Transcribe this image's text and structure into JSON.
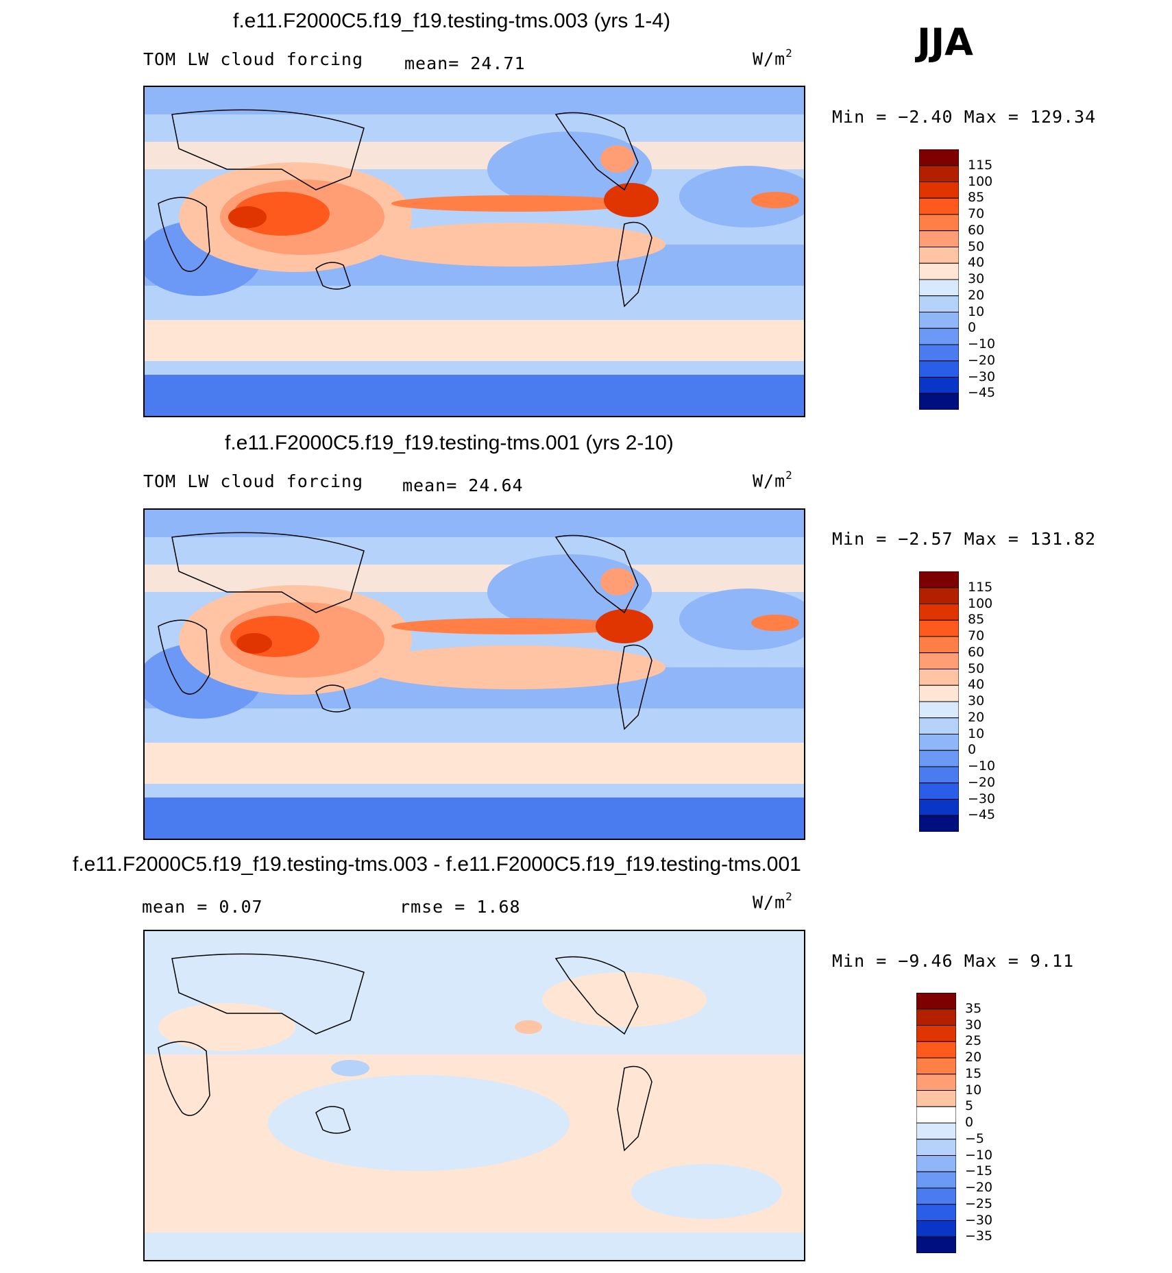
{
  "season_label": "JJA",
  "units_base": "W/m",
  "units_exp": "2",
  "panels": [
    {
      "title": "f.e11.F2000C5.f19_f19.testing-tms.003 (yrs 1-4)",
      "variable": "TOM LW cloud forcing",
      "stat1": "mean=   24.71",
      "stat2": "",
      "minmax": "Min =   −2.40 Max = 129.34",
      "colorbar_labels": [
        "115",
        "100",
        "85",
        "70",
        "60",
        "50",
        "40",
        "30",
        "20",
        "10",
        "0",
        "−10",
        "−20",
        "−30",
        "−45"
      ]
    },
    {
      "title": "f.e11.F2000C5.f19_f19.testing-tms.001 (yrs 2-10)",
      "variable": "TOM LW cloud forcing",
      "stat1": "mean=   24.64",
      "stat2": "",
      "minmax": "Min =   −2.57 Max = 131.82",
      "colorbar_labels": [
        "115",
        "100",
        "85",
        "70",
        "60",
        "50",
        "40",
        "30",
        "20",
        "10",
        "0",
        "−10",
        "−20",
        "−30",
        "−45"
      ]
    },
    {
      "title": "f.e11.F2000C5.f19_f19.testing-tms.003 - f.e11.F2000C5.f19_f19.testing-tms.001",
      "variable": "",
      "stat1": "mean =    0.07",
      "stat2": "rmse =    1.68",
      "minmax": "Min =   −9.46 Max =    9.11",
      "colorbar_labels": [
        "35",
        "30",
        "25",
        "20",
        "15",
        "10",
        "5",
        "0",
        "−5",
        "−10",
        "−15",
        "−20",
        "−25",
        "−30",
        "−35"
      ]
    }
  ],
  "colors": {
    "scale16": [
      "#7f0000",
      "#b32000",
      "#e03500",
      "#ff5a1e",
      "#ff7f46",
      "#ff9e74",
      "#ffc4a4",
      "#ffe6d4",
      "#d7e9fb",
      "#b4d2fa",
      "#8fb6f8",
      "#6c99f5",
      "#4a7cf0",
      "#2a5ee8",
      "#0a36c8",
      "#000f7f"
    ],
    "zero_fill": "#cfe3fb",
    "warm_fill": "#ffe4d0",
    "cool_fill": "#c5dcfa"
  },
  "chart_data": [
    {
      "type": "heatmap",
      "title": "f.e11.F2000C5.f19_f19.testing-tms.003 (yrs 1-4)",
      "subtitle": "TOM LW cloud forcing",
      "mean": 24.71,
      "min": -2.4,
      "max": 129.34,
      "units": "W/m2",
      "colorbar_levels": [
        115,
        100,
        85,
        70,
        60,
        50,
        40,
        30,
        20,
        10,
        0,
        -10,
        -20,
        -30,
        -45
      ]
    },
    {
      "type": "heatmap",
      "title": "f.e11.F2000C5.f19_f19.testing-tms.001 (yrs 2-10)",
      "subtitle": "TOM LW cloud forcing",
      "mean": 24.64,
      "min": -2.57,
      "max": 131.82,
      "units": "W/m2",
      "colorbar_levels": [
        115,
        100,
        85,
        70,
        60,
        50,
        40,
        30,
        20,
        10,
        0,
        -10,
        -20,
        -30,
        -45
      ]
    },
    {
      "type": "heatmap",
      "title": "f.e11.F2000C5.f19_f19.testing-tms.003 - f.e11.F2000C5.f19_f19.testing-tms.001",
      "mean": 0.07,
      "rmse": 1.68,
      "min": -9.46,
      "max": 9.11,
      "units": "W/m2",
      "colorbar_levels": [
        35,
        30,
        25,
        20,
        15,
        10,
        5,
        0,
        -5,
        -10,
        -15,
        -20,
        -25,
        -30,
        -35
      ]
    }
  ]
}
